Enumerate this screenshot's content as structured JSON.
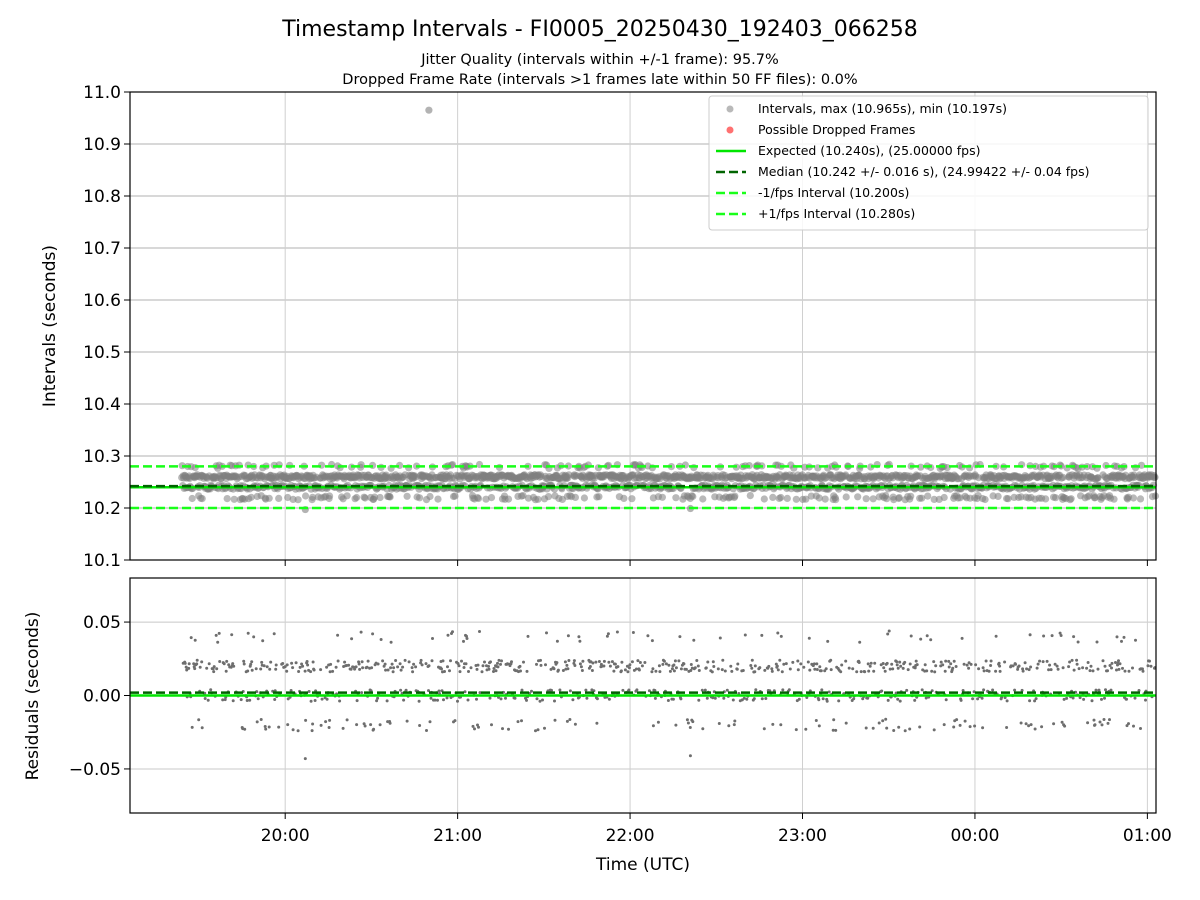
{
  "figure": {
    "title": "Timestamp Intervals - FI0005_20250430_192403_066258",
    "subtitle_1": "Jitter Quality (intervals within +/-1 frame): 95.7%",
    "subtitle_2": "Dropped Frame Rate (intervals >1 frames late within 50 FF files): 0.0%",
    "xlabel": "Time (UTC)"
  },
  "colors": {
    "points": "#808080",
    "dropped": "#ff4d4d",
    "expected": "#00e600",
    "median": "#006400",
    "bounds": "#19ff19",
    "grid": "#b0b0b0"
  },
  "chart_data": [
    {
      "type": "scatter",
      "panel": "top",
      "ylabel": "Intervals (seconds)",
      "xlim": [
        "19:06",
        "01:03"
      ],
      "ylim": [
        10.1,
        11.0
      ],
      "yticks": [
        "10.1",
        "10.2",
        "10.3",
        "10.4",
        "10.5",
        "10.6",
        "10.7",
        "10.8",
        "10.9",
        "11.0"
      ],
      "xticks": [
        "20:00",
        "21:00",
        "22:00",
        "23:00",
        "00:00",
        "01:00"
      ],
      "grid": true,
      "legend_position": "top-right",
      "series": [
        {
          "name": "Intervals, max (10.965s), min (10.197s)",
          "kind": "points",
          "x_range": [
            "19:24",
            "01:03"
          ],
          "levels": [
            10.22,
            10.24,
            10.26,
            10.28
          ],
          "max": 10.965,
          "min": 10.197,
          "max_at": "20:50",
          "min_at": "20:07",
          "extra_low_at": "22:21"
        },
        {
          "name": "Possible Dropped Frames",
          "kind": "points",
          "values": []
        },
        {
          "name": "Expected (10.240s), (25.00000 fps)",
          "kind": "hline",
          "y": 10.24
        },
        {
          "name": "Median (10.242 +/- 0.016 s), (24.99422 +/- 0.04 fps)",
          "kind": "hline",
          "y": 10.242
        },
        {
          "name": "-1/fps Interval (10.200s)",
          "kind": "hline",
          "y": 10.2
        },
        {
          "name": "+1/fps Interval (10.280s)",
          "kind": "hline",
          "y": 10.28
        }
      ]
    },
    {
      "type": "scatter",
      "panel": "bottom",
      "ylabel": "Residuals (seconds)",
      "xlim": [
        "19:06",
        "01:03"
      ],
      "ylim": [
        -0.08,
        0.08
      ],
      "yticks": [
        "0.05",
        "0.00",
        "−0.05"
      ],
      "ytick_values": [
        0.05,
        0.0,
        -0.05
      ],
      "xticks": [
        "20:00",
        "21:00",
        "22:00",
        "23:00",
        "00:00",
        "01:00"
      ],
      "grid": true,
      "series": [
        {
          "name": "",
          "kind": "points",
          "levels": [
            -0.02,
            0.0,
            0.02,
            0.04
          ],
          "min": -0.043,
          "max": 0.045
        },
        {
          "name": "",
          "kind": "hline",
          "y": 0.0
        },
        {
          "name": "",
          "kind": "hline",
          "y": 0.002
        }
      ]
    }
  ]
}
